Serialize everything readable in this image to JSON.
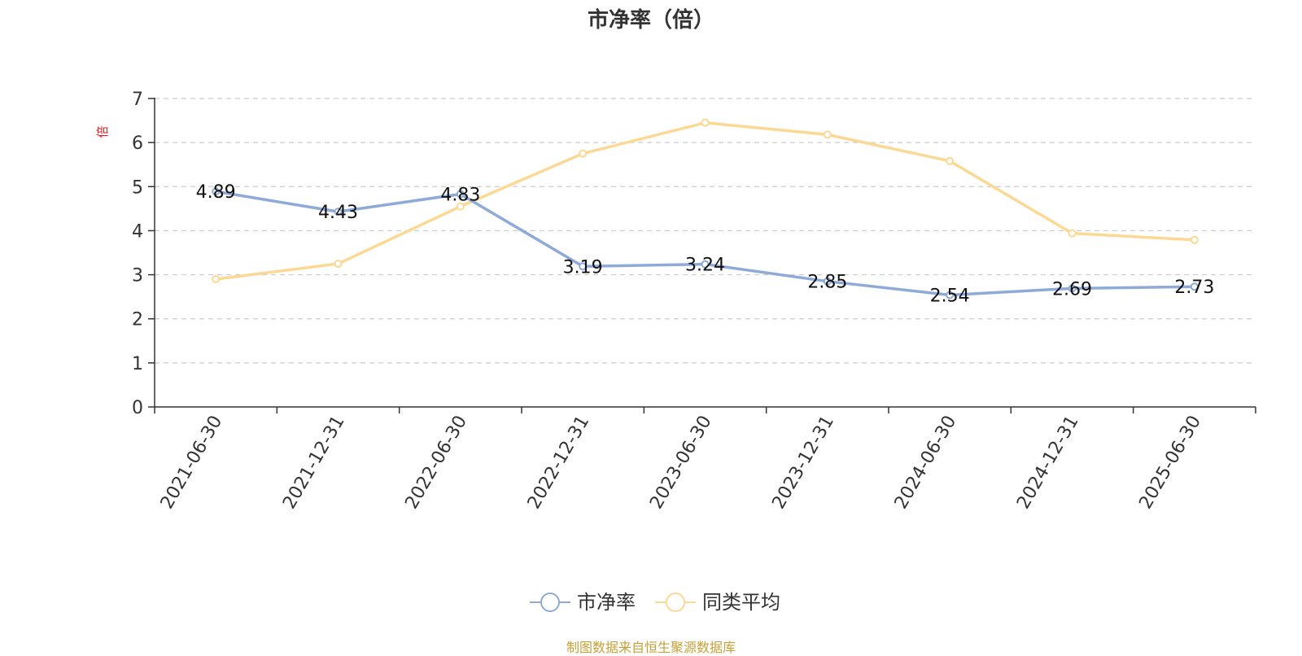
{
  "chart_data": {
    "type": "line",
    "title": "市净率（倍）",
    "ylabel": "倍",
    "ylim": [
      0,
      7
    ],
    "yticks": [
      0,
      1,
      2,
      3,
      4,
      5,
      6,
      7
    ],
    "grid": true,
    "legend_position": "bottom",
    "categories": [
      "2021-06-30",
      "2021-12-31",
      "2022-06-30",
      "2022-12-31",
      "2023-06-30",
      "2023-12-31",
      "2024-06-30",
      "2024-12-31",
      "2025-06-30"
    ],
    "series": [
      {
        "name": "市净率",
        "color": "#8eaad8",
        "show_labels": true,
        "values": [
          4.89,
          4.43,
          4.83,
          3.19,
          3.24,
          2.85,
          2.54,
          2.69,
          2.73
        ]
      },
      {
        "name": "同类平均",
        "color": "#fbd994",
        "show_labels": false,
        "values": [
          2.9,
          3.25,
          4.55,
          5.75,
          6.45,
          6.18,
          5.58,
          3.94,
          3.79
        ]
      }
    ]
  },
  "source_note": "制图数据来自恒生聚源数据库"
}
